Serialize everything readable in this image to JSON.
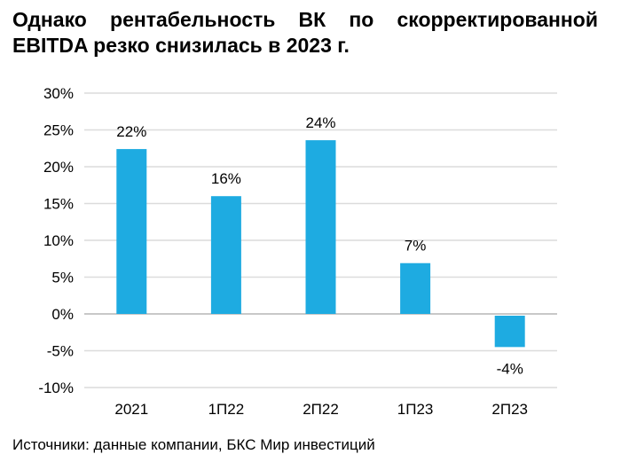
{
  "chart_data": {
    "type": "bar",
    "title": "Однако рентабельность ВК по скорректированной EBITDA резко снизилась в 2023 г.",
    "categories": [
      "2021",
      "1П22",
      "2П22",
      "1П23",
      "2П23"
    ],
    "values": [
      22.4,
      16.0,
      23.6,
      6.9,
      -4.5
    ],
    "data_labels": [
      "22%",
      "16%",
      "24%",
      "7%",
      "-4%"
    ],
    "ylim": [
      -10,
      30
    ],
    "yticks": [
      30,
      25,
      20,
      15,
      10,
      5,
      0,
      -5,
      -10
    ],
    "ytick_labels": [
      "30%",
      "25%",
      "20%",
      "15%",
      "10%",
      "5%",
      "0%",
      "-5%",
      "-10%"
    ],
    "xlabel": "",
    "ylabel": "",
    "grid": true,
    "bar_color": "#1EABE1",
    "source": "Источники: данные компании, БКС Мир инвестиций"
  }
}
